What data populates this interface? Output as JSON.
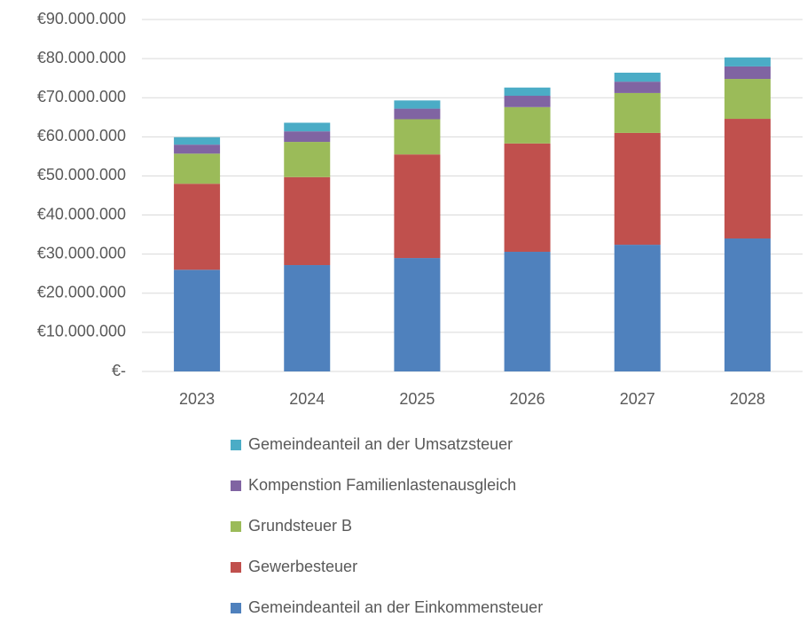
{
  "chart_data": {
    "type": "stacked_bar",
    "categories": [
      "2023",
      "2024",
      "2025",
      "2026",
      "2027",
      "2028"
    ],
    "series": [
      {
        "name": "Gemeindeanteil an der Einkommensteuer",
        "color": "#4f81bd",
        "values": [
          26000000,
          27200000,
          29000000,
          30600000,
          32400000,
          34000000
        ]
      },
      {
        "name": "Gewerbesteuer",
        "color": "#c0504d",
        "values": [
          22000000,
          22500000,
          26500000,
          27700000,
          28600000,
          30600000
        ]
      },
      {
        "name": "Grundsteuer B",
        "color": "#9bbb59",
        "values": [
          7700000,
          9000000,
          9000000,
          9300000,
          10200000,
          10200000
        ]
      },
      {
        "name": "Kompenstion Familienlastenausgleich",
        "color": "#8064a2",
        "values": [
          2300000,
          2700000,
          2700000,
          2900000,
          2900000,
          3200000
        ]
      },
      {
        "name": "Gemeindeanteil an der Umsatzsteuer",
        "color": "#4bacc6",
        "values": [
          1900000,
          2200000,
          2100000,
          2100000,
          2300000,
          2300000
        ]
      }
    ],
    "ylim": [
      0,
      90000000
    ],
    "yticks": [
      {
        "value": 0,
        "label": "€-"
      },
      {
        "value": 10000000,
        "label": "€10.000.000"
      },
      {
        "value": 20000000,
        "label": "€20.000.000"
      },
      {
        "value": 30000000,
        "label": "€30.000.000"
      },
      {
        "value": 40000000,
        "label": "€40.000.000"
      },
      {
        "value": 50000000,
        "label": "€50.000.000"
      },
      {
        "value": 60000000,
        "label": "€60.000.000"
      },
      {
        "value": 70000000,
        "label": "€70.000.000"
      },
      {
        "value": 80000000,
        "label": "€80.000.000"
      },
      {
        "value": 90000000,
        "label": "€90.000.000"
      }
    ],
    "grid": true,
    "legend": "bottom"
  }
}
